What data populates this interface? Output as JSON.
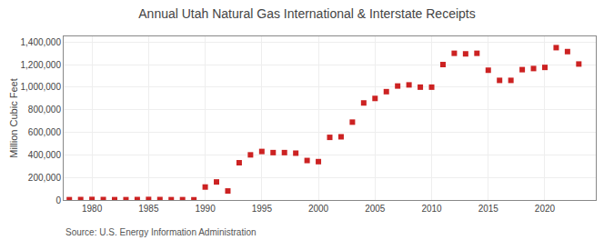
{
  "chart_data": {
    "type": "scatter",
    "title": "Annual Utah Natural Gas International & Interstate Receipts",
    "ylabel": "Million Cubic Feet",
    "annotations": [
      "Source: U.S. Energy Information Administration"
    ],
    "color": "#cc2222",
    "marker": "square",
    "grid": true,
    "xlim": [
      1977.5,
      2024.5
    ],
    "xticks": [
      1980,
      1985,
      1990,
      1995,
      2000,
      2005,
      2010,
      2015,
      2020
    ],
    "ylim": [
      0,
      1450000
    ],
    "yticks": [
      0,
      {
        "value": 200000,
        "label": "200,000"
      },
      {
        "value": 400000,
        "label": "400,000"
      },
      {
        "value": 600000,
        "label": "600,000"
      },
      {
        "value": 800000,
        "label": "800,000"
      },
      {
        "value": 1000000,
        "label": "1,000,000"
      },
      {
        "value": 1200000,
        "label": "1,200,000"
      },
      {
        "value": 1400000,
        "label": "1,400,000"
      }
    ],
    "x": [
      1978,
      1979,
      1980,
      1981,
      1982,
      1983,
      1984,
      1985,
      1986,
      1987,
      1988,
      1989,
      1990,
      1991,
      1992,
      1993,
      1994,
      1995,
      1996,
      1997,
      1998,
      1999,
      2000,
      2001,
      2002,
      2003,
      2004,
      2005,
      2006,
      2007,
      2008,
      2009,
      2010,
      2011,
      2012,
      2013,
      2014,
      2015,
      2016,
      2017,
      2018,
      2019,
      2020,
      2021,
      2022,
      2023
    ],
    "values": [
      3000,
      4000,
      5000,
      4000,
      3000,
      3000,
      4000,
      5000,
      4000,
      3000,
      3000,
      2000,
      115000,
      160000,
      80000,
      330000,
      400000,
      430000,
      420000,
      420000,
      415000,
      350000,
      340000,
      555000,
      560000,
      690000,
      860000,
      900000,
      960000,
      1010000,
      1020000,
      1000000,
      1000000,
      1200000,
      1300000,
      1295000,
      1300000,
      1150000,
      1060000,
      1060000,
      1155000,
      1165000,
      1175000,
      1350000,
      1315000,
      1205000
    ]
  }
}
